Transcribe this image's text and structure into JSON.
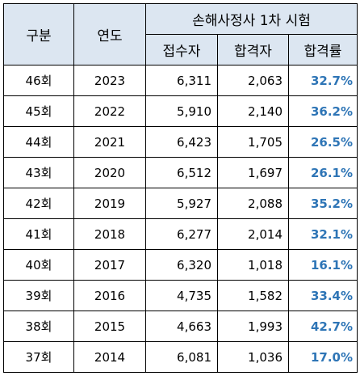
{
  "header": {
    "col_category": "구분",
    "col_year": "연도",
    "group_title": "손해사정사 1차 시험",
    "col_applicants": "접수자",
    "col_passers": "합격자",
    "col_pass_rate": "합격률"
  },
  "colors": {
    "header_bg": "#dce6f1",
    "rate_text": "#2e75b6",
    "border": "#000000"
  },
  "rows": [
    {
      "round": "46회",
      "year": "2023",
      "applicants": "6,311",
      "passers": "2,063",
      "rate": "32.7%"
    },
    {
      "round": "45회",
      "year": "2022",
      "applicants": "5,910",
      "passers": "2,140",
      "rate": "36.2%"
    },
    {
      "round": "44회",
      "year": "2021",
      "applicants": "6,423",
      "passers": "1,705",
      "rate": "26.5%"
    },
    {
      "round": "43회",
      "year": "2020",
      "applicants": "6,512",
      "passers": "1,697",
      "rate": "26.1%"
    },
    {
      "round": "42회",
      "year": "2019",
      "applicants": "5,927",
      "passers": "2,088",
      "rate": "35.2%"
    },
    {
      "round": "41회",
      "year": "2018",
      "applicants": "6,277",
      "passers": "2,014",
      "rate": "32.1%"
    },
    {
      "round": "40회",
      "year": "2017",
      "applicants": "6,320",
      "passers": "1,018",
      "rate": "16.1%"
    },
    {
      "round": "39회",
      "year": "2016",
      "applicants": "4,735",
      "passers": "1,582",
      "rate": "33.4%"
    },
    {
      "round": "38회",
      "year": "2015",
      "applicants": "4,663",
      "passers": "1,993",
      "rate": "42.7%"
    },
    {
      "round": "37회",
      "year": "2014",
      "applicants": "6,081",
      "passers": "1,036",
      "rate": "17.0%"
    }
  ]
}
